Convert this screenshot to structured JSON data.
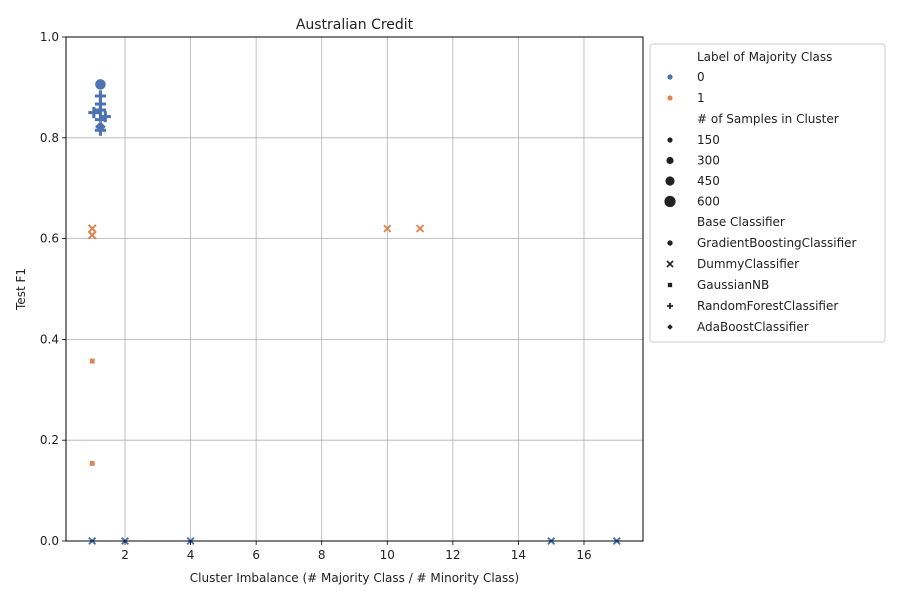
{
  "chart_data": {
    "type": "scatter",
    "title": "Australian Credit",
    "xlabel": "Cluster Imbalance (# Majority Class / # Minority Class)",
    "ylabel": "Test F1",
    "xlim": [
      0.2,
      17.8
    ],
    "ylim": [
      0,
      1
    ],
    "xticks": [
      2,
      4,
      6,
      8,
      10,
      12,
      14,
      16
    ],
    "yticks": [
      0.0,
      0.2,
      0.4,
      0.6,
      0.8,
      1.0
    ],
    "xtick_labels": [
      "2",
      "4",
      "6",
      "8",
      "10",
      "12",
      "14",
      "16"
    ],
    "ytick_labels": [
      "0.0",
      "0.2",
      "0.4",
      "0.6",
      "0.8",
      "1.0"
    ],
    "grid": true,
    "legend_placement": "outside-right",
    "colors": {
      "0": "#4c72b0",
      "1": "#dd8452"
    },
    "points": [
      {
        "x": 1.25,
        "y": 0.906,
        "label": "0",
        "samples": 690,
        "classifier": "GradientBoostingClassifier"
      },
      {
        "x": 1.25,
        "y": 0.883,
        "label": "0",
        "samples": 690,
        "classifier": "RandomForestClassifier"
      },
      {
        "x": 1.25,
        "y": 0.867,
        "label": "0",
        "samples": 690,
        "classifier": "RandomForestClassifier"
      },
      {
        "x": 1.25,
        "y": 0.855,
        "label": "0",
        "samples": 690,
        "classifier": "RandomForestClassifier"
      },
      {
        "x": 1.05,
        "y": 0.85,
        "label": "0",
        "samples": 690,
        "classifier": "RandomForestClassifier"
      },
      {
        "x": 1.4,
        "y": 0.842,
        "label": "0",
        "samples": 690,
        "classifier": "RandomForestClassifier"
      },
      {
        "x": 1.25,
        "y": 0.836,
        "label": "0",
        "samples": 690,
        "classifier": "RandomForestClassifier"
      },
      {
        "x": 1.25,
        "y": 0.822,
        "label": "0",
        "samples": 690,
        "classifier": "AdaBoostClassifier"
      },
      {
        "x": 1.25,
        "y": 0.815,
        "label": "0",
        "samples": 690,
        "classifier": "RandomForestClassifier"
      },
      {
        "x": 1.0,
        "y": 0.62,
        "label": "1",
        "samples": 120,
        "classifier": "DummyClassifier"
      },
      {
        "x": 1.0,
        "y": 0.607,
        "label": "1",
        "samples": 120,
        "classifier": "DummyClassifier"
      },
      {
        "x": 1.0,
        "y": 0.357,
        "label": "1",
        "samples": 60,
        "classifier": "GaussianNB"
      },
      {
        "x": 1.0,
        "y": 0.154,
        "label": "1",
        "samples": 60,
        "classifier": "GaussianNB"
      },
      {
        "x": 10.0,
        "y": 0.62,
        "label": "1",
        "samples": 60,
        "classifier": "DummyClassifier"
      },
      {
        "x": 11.0,
        "y": 0.62,
        "label": "1",
        "samples": 80,
        "classifier": "DummyClassifier"
      },
      {
        "x": 1.0,
        "y": 0.0,
        "label": "0",
        "samples": 60,
        "classifier": "DummyClassifier"
      },
      {
        "x": 2.0,
        "y": 0.0,
        "label": "0",
        "samples": 60,
        "classifier": "DummyClassifier"
      },
      {
        "x": 4.0,
        "y": 0.0,
        "label": "0",
        "samples": 60,
        "classifier": "DummyClassifier"
      },
      {
        "x": 15.0,
        "y": 0.0,
        "label": "0",
        "samples": 60,
        "classifier": "DummyClassifier"
      },
      {
        "x": 17.0,
        "y": 0.0,
        "label": "0",
        "samples": 60,
        "classifier": "DummyClassifier"
      }
    ],
    "legend": {
      "hue_title": "Label of Majority Class",
      "hue_entries": [
        {
          "label": "0",
          "color": "#4c72b0"
        },
        {
          "label": "1",
          "color": "#dd8452"
        }
      ],
      "size_title": "# of Samples in Cluster",
      "size_entries": [
        {
          "label": "150",
          "samples": 150
        },
        {
          "label": "300",
          "samples": 300
        },
        {
          "label": "450",
          "samples": 450
        },
        {
          "label": "600",
          "samples": 600
        }
      ],
      "style_title": "Base Classifier",
      "style_entries": [
        {
          "label": "GradientBoostingClassifier",
          "marker": "circle"
        },
        {
          "label": "DummyClassifier",
          "marker": "x"
        },
        {
          "label": "GaussianNB",
          "marker": "square"
        },
        {
          "label": "RandomForestClassifier",
          "marker": "plus"
        },
        {
          "label": "AdaBoostClassifier",
          "marker": "diamond"
        }
      ]
    }
  }
}
